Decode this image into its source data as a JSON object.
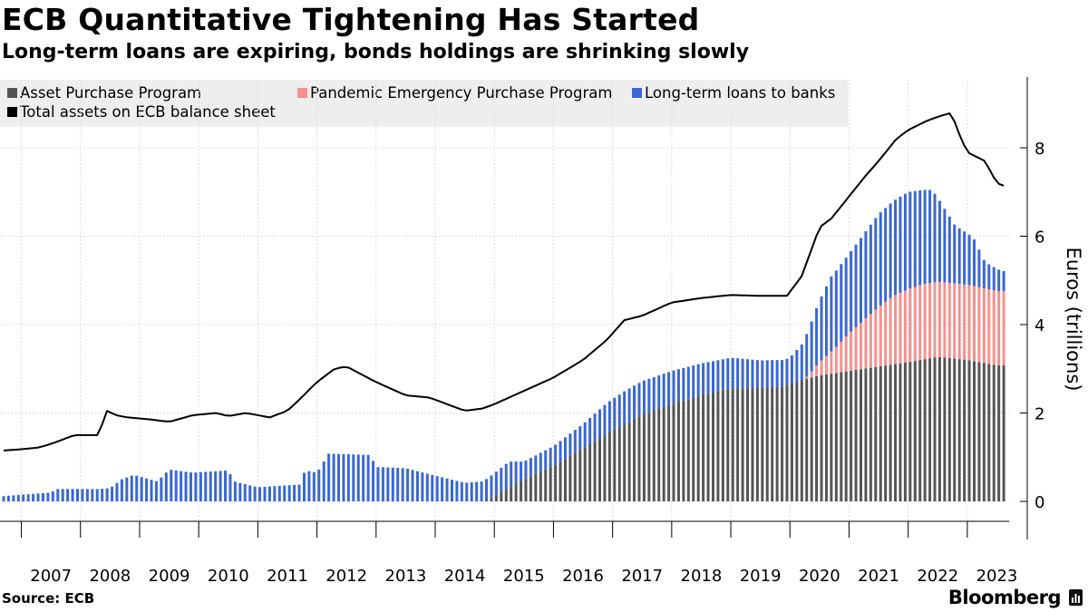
{
  "header": {
    "title": "ECB Quantitative Tightening Has Started",
    "subtitle": "Long-term loans are expiring, bonds holdings are shrinking slowly"
  },
  "footer": {
    "source": "Source: ECB",
    "brand": "Bloomberg",
    "brand_icon": "bloomberg-terminal-icon"
  },
  "colors": {
    "app": "#555555",
    "pepp": "#f4918d",
    "ltro": "#3a67d1",
    "total": "#000000",
    "grid": "#dddddd",
    "legend_bg": "#eeeeee"
  },
  "chart_data": {
    "type": "bar",
    "stacked": true,
    "title": "ECB Quantitative Tightening Has Started",
    "subtitle": "Long-term loans are expiring, bonds holdings are shrinking slowly",
    "xlabel": "",
    "ylabel": "Euros (trillions)",
    "ylim": [
      -0.9,
      9.6
    ],
    "y_ticks": [
      "0",
      "2",
      "4",
      "6",
      "8"
    ],
    "x_ticks": [
      "2007",
      "2008",
      "2009",
      "2010",
      "2011",
      "2012",
      "2013",
      "2014",
      "2015",
      "2016",
      "2017",
      "2018",
      "2019",
      "2020",
      "2021",
      "2022",
      "2023"
    ],
    "legend": [
      {
        "name": "Asset Purchase Program",
        "key": "app"
      },
      {
        "name": "Pandemic Emergency Purchase Program",
        "key": "pepp"
      },
      {
        "name": "Long-term loans to banks",
        "key": "ltro"
      },
      {
        "name": "Total assets on ECB balance sheet",
        "key": "total"
      }
    ],
    "legend_position": "top-left",
    "start": "2006-09",
    "frequency": "monthly",
    "series": [
      {
        "name": "Asset Purchase Program",
        "type": "bar",
        "color": "#555555",
        "knots": [
          [
            2006.7,
            0
          ],
          [
            2014.8,
            0
          ],
          [
            2014.9,
            0.05
          ],
          [
            2015.25,
            0.3
          ],
          [
            2015.5,
            0.5
          ],
          [
            2016.0,
            0.8
          ],
          [
            2016.5,
            1.2
          ],
          [
            2017.0,
            1.6
          ],
          [
            2017.5,
            1.95
          ],
          [
            2018.0,
            2.2
          ],
          [
            2018.5,
            2.4
          ],
          [
            2019.0,
            2.55
          ],
          [
            2019.5,
            2.57
          ],
          [
            2019.9,
            2.6
          ],
          [
            2020.2,
            2.75
          ],
          [
            2020.5,
            2.85
          ],
          [
            2021.0,
            2.95
          ],
          [
            2021.5,
            3.05
          ],
          [
            2022.0,
            3.15
          ],
          [
            2022.5,
            3.27
          ],
          [
            2023.0,
            3.2
          ],
          [
            2023.5,
            3.08
          ]
        ]
      },
      {
        "name": "Pandemic Emergency Purchase Program",
        "type": "bar",
        "color": "#f4918d",
        "knots": [
          [
            2006.7,
            0
          ],
          [
            2020.2,
            0
          ],
          [
            2020.3,
            0.05
          ],
          [
            2020.5,
            0.3
          ],
          [
            2020.75,
            0.55
          ],
          [
            2021.0,
            0.85
          ],
          [
            2021.25,
            1.1
          ],
          [
            2021.5,
            1.35
          ],
          [
            2021.75,
            1.55
          ],
          [
            2022.0,
            1.65
          ],
          [
            2022.25,
            1.7
          ],
          [
            2022.5,
            1.7
          ],
          [
            2023.0,
            1.7
          ],
          [
            2023.5,
            1.68
          ]
        ]
      },
      {
        "name": "Long-term loans to banks",
        "type": "bar",
        "color": "#3a67d1",
        "knots": [
          [
            2006.7,
            0.12
          ],
          [
            2007.5,
            0.2
          ],
          [
            2007.6,
            0.28
          ],
          [
            2008.3,
            0.28
          ],
          [
            2008.5,
            0.3
          ],
          [
            2008.7,
            0.5
          ],
          [
            2008.9,
            0.6
          ],
          [
            2009.3,
            0.45
          ],
          [
            2009.5,
            0.72
          ],
          [
            2009.9,
            0.65
          ],
          [
            2010.5,
            0.7
          ],
          [
            2010.6,
            0.45
          ],
          [
            2010.9,
            0.35
          ],
          [
            2011.0,
            0.32
          ],
          [
            2011.7,
            0.38
          ],
          [
            2011.8,
            0.7
          ],
          [
            2012.0,
            0.65
          ],
          [
            2012.2,
            1.08
          ],
          [
            2012.9,
            1.05
          ],
          [
            2013.0,
            0.78
          ],
          [
            2013.5,
            0.75
          ],
          [
            2014.0,
            0.58
          ],
          [
            2014.5,
            0.42
          ],
          [
            2014.8,
            0.45
          ],
          [
            2015.25,
            0.6
          ],
          [
            2015.5,
            0.4
          ],
          [
            2016.0,
            0.45
          ],
          [
            2016.5,
            0.55
          ],
          [
            2016.9,
            0.7
          ],
          [
            2017.2,
            0.75
          ],
          [
            2017.5,
            0.77
          ],
          [
            2018.0,
            0.75
          ],
          [
            2018.5,
            0.72
          ],
          [
            2019.0,
            0.7
          ],
          [
            2019.5,
            0.62
          ],
          [
            2019.9,
            0.6
          ],
          [
            2020.0,
            0.6
          ],
          [
            2020.2,
            0.8
          ],
          [
            2020.5,
            1.4
          ],
          [
            2020.7,
            1.7
          ],
          [
            2021.0,
            1.8
          ],
          [
            2021.5,
            2.1
          ],
          [
            2022.0,
            2.2
          ],
          [
            2022.4,
            2.1
          ],
          [
            2022.8,
            1.3
          ],
          [
            2023.1,
            1.1
          ],
          [
            2023.3,
            0.6
          ],
          [
            2023.6,
            0.45
          ]
        ]
      },
      {
        "name": "Total assets on ECB balance sheet",
        "type": "line",
        "color": "#000000",
        "knots": [
          [
            2006.7,
            1.15
          ],
          [
            2007.0,
            1.18
          ],
          [
            2007.3,
            1.22
          ],
          [
            2007.5,
            1.3
          ],
          [
            2007.9,
            1.5
          ],
          [
            2008.3,
            1.5
          ],
          [
            2008.45,
            2.05
          ],
          [
            2008.6,
            1.95
          ],
          [
            2008.8,
            1.9
          ],
          [
            2009.2,
            1.85
          ],
          [
            2009.5,
            1.8
          ],
          [
            2009.9,
            1.95
          ],
          [
            2010.3,
            2.0
          ],
          [
            2010.5,
            1.93
          ],
          [
            2010.8,
            2.0
          ],
          [
            2011.2,
            1.9
          ],
          [
            2011.5,
            2.05
          ],
          [
            2011.7,
            2.3
          ],
          [
            2012.0,
            2.7
          ],
          [
            2012.3,
            3.0
          ],
          [
            2012.5,
            3.05
          ],
          [
            2013.0,
            2.7
          ],
          [
            2013.5,
            2.4
          ],
          [
            2013.9,
            2.35
          ],
          [
            2014.3,
            2.15
          ],
          [
            2014.5,
            2.05
          ],
          [
            2014.8,
            2.1
          ],
          [
            2015.0,
            2.2
          ],
          [
            2015.5,
            2.5
          ],
          [
            2016.0,
            2.8
          ],
          [
            2016.5,
            3.2
          ],
          [
            2016.9,
            3.65
          ],
          [
            2017.2,
            4.1
          ],
          [
            2017.5,
            4.2
          ],
          [
            2018.0,
            4.5
          ],
          [
            2018.5,
            4.6
          ],
          [
            2019.0,
            4.67
          ],
          [
            2019.5,
            4.65
          ],
          [
            2019.95,
            4.65
          ],
          [
            2020.2,
            5.1
          ],
          [
            2020.5,
            6.2
          ],
          [
            2020.7,
            6.4
          ],
          [
            2021.0,
            6.9
          ],
          [
            2021.3,
            7.4
          ],
          [
            2021.5,
            7.7
          ],
          [
            2021.8,
            8.2
          ],
          [
            2022.0,
            8.4
          ],
          [
            2022.3,
            8.6
          ],
          [
            2022.5,
            8.7
          ],
          [
            2022.75,
            8.8
          ],
          [
            2022.8,
            8.5
          ],
          [
            2023.0,
            7.9
          ],
          [
            2023.3,
            7.7
          ],
          [
            2023.5,
            7.2
          ],
          [
            2023.7,
            7.1
          ]
        ]
      }
    ]
  }
}
